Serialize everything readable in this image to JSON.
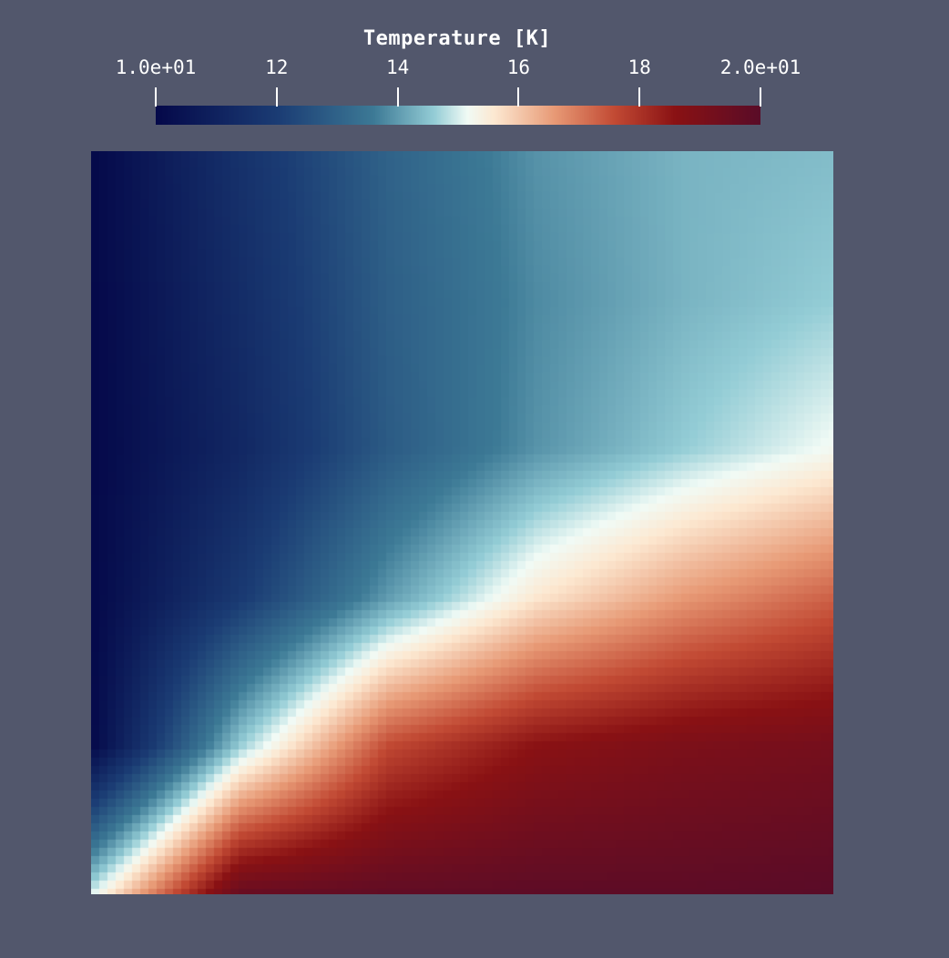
{
  "chart_data": {
    "type": "heatmap",
    "title": "Temperature [K]",
    "colorbar": {
      "range": [
        10,
        20
      ],
      "ticks": [
        10,
        12,
        14,
        16,
        18,
        20
      ],
      "tick_labels": [
        "1.0e+01",
        "12",
        "14",
        "16",
        "18",
        "2.0e+01"
      ],
      "position": "top-horizontal",
      "colormap": "blue-white-red diverging",
      "colors": [
        "#05094a",
        "#1b3c74",
        "#3d7a96",
        "#94cdd6",
        "#f1fbf6",
        "#fde9d2",
        "#e89a76",
        "#c24a34",
        "#8a1214",
        "#5a0c28"
      ]
    },
    "field_samples": {
      "description_grid": "rows top to bottom, columns left to right",
      "values": [
        [
          10.0,
          11.6,
          13.0,
          13.9,
          14.3,
          14.4
        ],
        [
          10.0,
          11.4,
          12.9,
          13.8,
          14.3,
          14.6
        ],
        [
          10.0,
          11.2,
          12.8,
          13.9,
          14.6,
          15.2
        ],
        [
          10.0,
          11.9,
          14.0,
          15.6,
          16.6,
          17.3
        ],
        [
          10.0,
          14.6,
          17.6,
          18.6,
          19.0,
          19.2
        ],
        [
          15.0,
          19.6,
          19.8,
          19.9,
          19.9,
          20.0
        ]
      ]
    }
  },
  "background_color": "#52576c"
}
